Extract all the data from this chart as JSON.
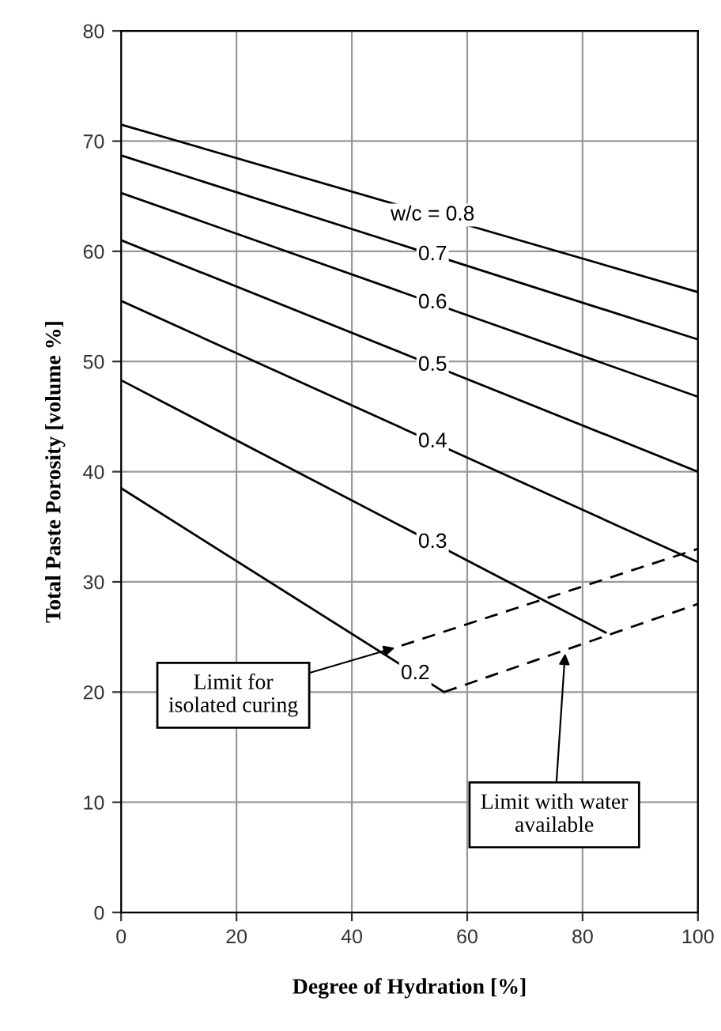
{
  "chart_data": {
    "type": "line",
    "xlabel": "Degree of Hydration [%]",
    "ylabel": "Total Paste Porosity [volume %]",
    "xlim": [
      0,
      100
    ],
    "ylim": [
      0,
      80
    ],
    "xticks": [
      0,
      20,
      40,
      60,
      80,
      100
    ],
    "yticks": [
      0,
      10,
      20,
      30,
      40,
      50,
      60,
      70,
      80
    ],
    "grid": true,
    "marker": "none",
    "series": [
      {
        "name": "w/c = 0.8",
        "color": "#000000",
        "line_style": "solid",
        "x": [
          0,
          100
        ],
        "values": [
          71.5,
          56.3
        ]
      },
      {
        "name": "0.7",
        "color": "#000000",
        "line_style": "solid",
        "x": [
          0,
          100
        ],
        "values": [
          68.7,
          52
        ]
      },
      {
        "name": "0.6",
        "color": "#000000",
        "line_style": "solid",
        "x": [
          0,
          100
        ],
        "values": [
          65.3,
          46.8
        ]
      },
      {
        "name": "0.5",
        "color": "#000000",
        "line_style": "solid",
        "x": [
          0,
          100
        ],
        "values": [
          61,
          40
        ]
      },
      {
        "name": "0.4",
        "color": "#000000",
        "line_style": "solid",
        "x": [
          0,
          100
        ],
        "values": [
          55.5,
          31.8
        ]
      },
      {
        "name": "0.3",
        "color": "#000000",
        "line_style": "solid",
        "x": [
          0,
          84
        ],
        "values": [
          48.3,
          25.4
        ]
      },
      {
        "name": "0.2",
        "color": "#000000",
        "line_style": "solid",
        "x": [
          0,
          56
        ],
        "values": [
          38.5,
          20
        ]
      },
      {
        "color": "#000000",
        "line_style": "dashed",
        "x": [
          45,
          100
        ],
        "values": [
          23.6,
          33
        ]
      },
      {
        "color": "#000000",
        "line_style": "dashed",
        "x": [
          56,
          100
        ],
        "values": [
          20,
          28
        ]
      }
    ],
    "annotations": [
      {
        "text": "Limit for\nisolated curing",
        "x": 48,
        "y": 24.1
      },
      {
        "text": "Limit with water\navailable",
        "x": 77,
        "y": 23.8
      }
    ]
  }
}
